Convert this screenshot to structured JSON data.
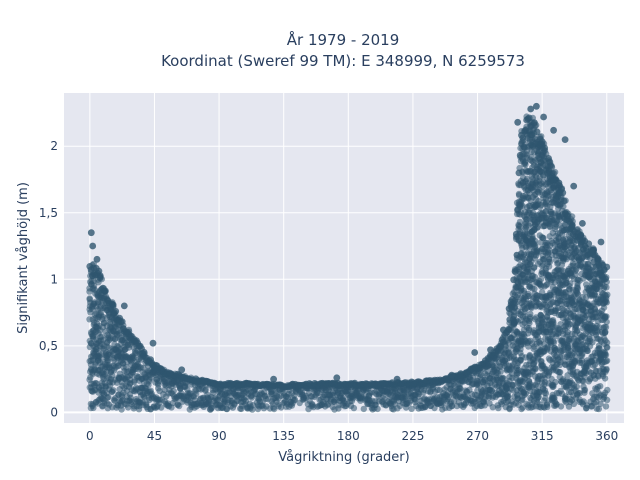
{
  "chart_data": {
    "type": "scatter",
    "title_line1": "År 1979 - 2019",
    "title_line2": "Koordinat (Sweref 99 TM): E 348999, N 6259573",
    "xlabel": "Vågriktning (grader)",
    "ylabel": "Signifikant våghöjd (m)",
    "xlim": [
      -18,
      372
    ],
    "ylim": [
      -0.08,
      2.4
    ],
    "x_ticks": [
      0,
      45,
      90,
      135,
      180,
      225,
      270,
      315,
      360
    ],
    "x_tick_labels": [
      "0",
      "45",
      "90",
      "135",
      "180",
      "225",
      "270",
      "315",
      "360"
    ],
    "y_ticks": [
      0,
      0.5,
      1,
      1.5,
      2
    ],
    "y_tick_labels": [
      "0",
      "0,5",
      "1",
      "1,5",
      "2"
    ],
    "grid": true,
    "marker_color": "#2f566f",
    "background_color": "#e5e7f0",
    "series": [
      {
        "envelope": {
          "x": [
            0,
            3,
            7,
            12,
            18,
            25,
            32,
            40,
            48,
            55,
            65,
            75,
            90,
            110,
            135,
            160,
            180,
            200,
            225,
            245,
            260,
            270,
            278,
            285,
            292,
            296,
            300,
            305,
            310,
            315,
            320,
            325,
            330,
            335,
            340,
            345,
            350,
            355,
            360
          ],
          "y": [
            1.1,
            1.12,
            1.05,
            0.9,
            0.78,
            0.65,
            0.55,
            0.42,
            0.34,
            0.3,
            0.28,
            0.25,
            0.22,
            0.22,
            0.21,
            0.22,
            0.22,
            0.22,
            0.23,
            0.25,
            0.3,
            0.35,
            0.42,
            0.5,
            0.7,
            1.1,
            2.1,
            2.25,
            2.2,
            2.05,
            1.9,
            1.8,
            1.65,
            1.5,
            1.4,
            1.3,
            1.25,
            1.15,
            1.1
          ]
        },
        "points": [
          {
            "x": 1,
            "y": 1.35
          },
          {
            "x": 2,
            "y": 1.25
          },
          {
            "x": 5,
            "y": 1.15
          },
          {
            "x": 311,
            "y": 2.3
          },
          {
            "x": 307,
            "y": 2.28
          },
          {
            "x": 316,
            "y": 2.22
          },
          {
            "x": 298,
            "y": 2.18
          },
          {
            "x": 323,
            "y": 2.12
          },
          {
            "x": 331,
            "y": 2.05
          },
          {
            "x": 337,
            "y": 1.7
          },
          {
            "x": 343,
            "y": 1.42
          },
          {
            "x": 356,
            "y": 1.28
          },
          {
            "x": 24,
            "y": 0.8
          },
          {
            "x": 44,
            "y": 0.52
          },
          {
            "x": 64,
            "y": 0.32
          },
          {
            "x": 128,
            "y": 0.25
          },
          {
            "x": 172,
            "y": 0.26
          },
          {
            "x": 214,
            "y": 0.25
          },
          {
            "x": 252,
            "y": 0.28
          },
          {
            "x": 268,
            "y": 0.45
          },
          {
            "x": 279,
            "y": 0.47
          },
          {
            "x": 288,
            "y": 0.62
          },
          {
            "x": 292,
            "y": 0.78
          },
          {
            "x": 350,
            "y": 1.2
          }
        ]
      }
    ]
  }
}
